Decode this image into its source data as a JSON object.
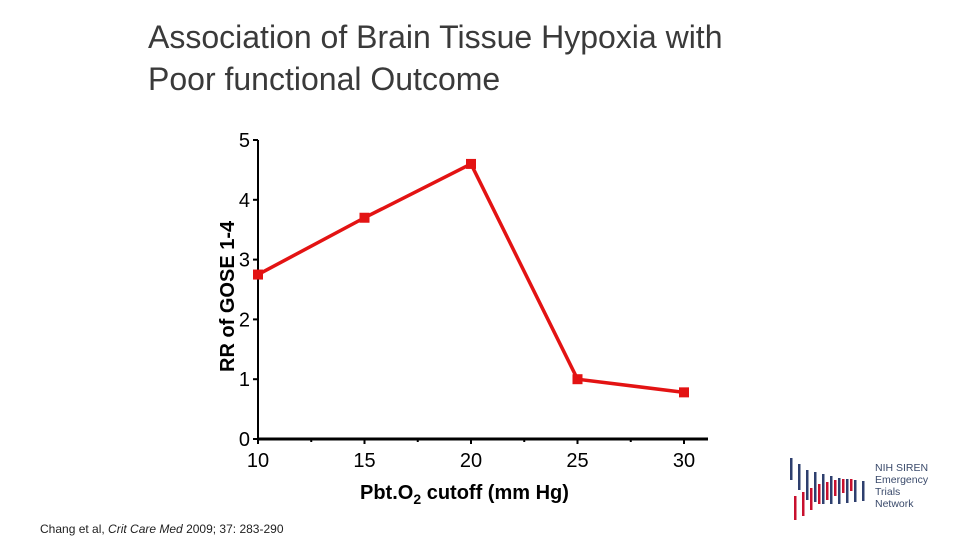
{
  "slide": {
    "title_line1": "Association of Brain Tissue Hypoxia with",
    "title_line2": "Poor functional Outcome"
  },
  "chart_data": {
    "type": "line",
    "xlabel_main": "Pbt.O",
    "xlabel_sub": "2",
    "xlabel_tail": " cutoff (mm Hg)",
    "ylabel": "RR of GOSE 1-4",
    "xlim": [
      10,
      30
    ],
    "ylim": [
      0,
      5
    ],
    "x_ticks": [
      "10",
      "15",
      "20",
      "25",
      "30"
    ],
    "y_ticks": [
      "0",
      "1",
      "2",
      "3",
      "4",
      "5"
    ],
    "series": [
      {
        "color": "#e31313",
        "x": [
          10,
          15,
          20,
          25,
          30
        ],
        "y": [
          2.75,
          3.7,
          4.6,
          1.0,
          0.78
        ]
      }
    ]
  },
  "citation": {
    "prefix": "Chang et al, ",
    "journal": "Crit Care Med",
    "suffix": " 2009; 37: 283-290"
  },
  "logo": {
    "line1": "NIH SIREN",
    "line2": "Emergency",
    "line3": "Trials",
    "line4": "Network"
  }
}
